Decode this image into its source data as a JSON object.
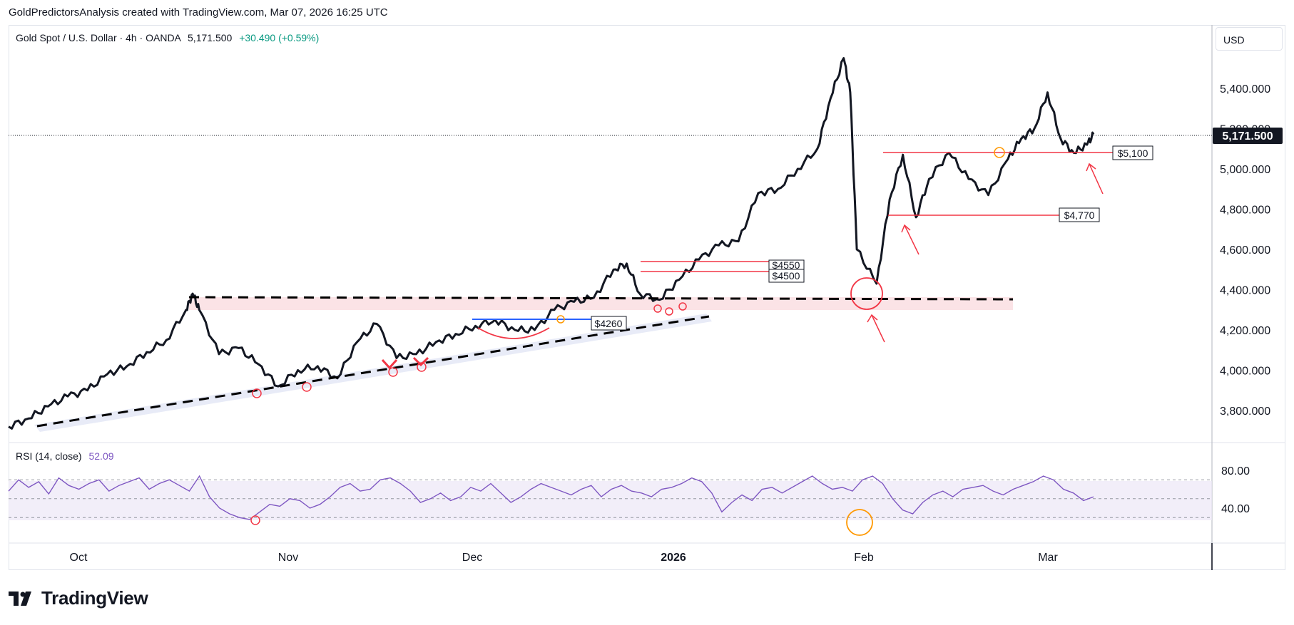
{
  "header": {
    "attribution": "GoldPredictorsAnalysis created with TradingView.com, Mar 07, 2026 16:25 UTC"
  },
  "legend": {
    "symbol": "Gold Spot / U.S. Dollar",
    "interval": "4h",
    "exchange": "OANDA",
    "last": "5,171.500",
    "change": "+30.490 (+0.59%)",
    "change_color": "#089981"
  },
  "currency": "USD",
  "price_axis": {
    "ticks": [
      "5,400.000",
      "5,200.000",
      "5,000.000",
      "4,800.000",
      "4,600.000",
      "4,400.000",
      "4,200.000",
      "4,000.000",
      "3,800.000"
    ],
    "current_price_label": "5,171.500"
  },
  "time_axis": {
    "labels": [
      "Oct",
      "Nov",
      "Dec",
      "2026",
      "Feb",
      "Mar"
    ]
  },
  "rsi": {
    "label": "RSI (14, close)",
    "value": "52.09",
    "ticks": [
      "80.00",
      "40.00"
    ],
    "line_color": "#7e57c2",
    "band_upper": 70,
    "band_mid": 50,
    "band_lower": 30,
    "values": [
      58,
      70,
      62,
      68,
      55,
      72,
      64,
      60,
      66,
      70,
      58,
      64,
      68,
      72,
      60,
      66,
      70,
      64,
      58,
      74,
      52,
      40,
      34,
      30,
      28,
      36,
      44,
      42,
      50,
      48,
      40,
      44,
      52,
      62,
      66,
      58,
      60,
      70,
      72,
      66,
      58,
      46,
      50,
      56,
      48,
      52,
      62,
      58,
      66,
      56,
      46,
      52,
      60,
      66,
      62,
      58,
      54,
      60,
      64,
      52,
      60,
      64,
      58,
      56,
      52,
      60,
      62,
      66,
      72,
      68,
      56,
      36,
      46,
      54,
      48,
      60,
      62,
      56,
      62,
      68,
      74,
      66,
      60,
      62,
      58,
      70,
      74,
      66,
      50,
      38,
      34,
      46,
      54,
      58,
      52,
      60,
      62,
      64,
      58,
      54,
      60,
      64,
      68,
      74,
      70,
      60,
      56,
      48,
      52
    ]
  },
  "footer": {
    "brand": "TradingView"
  },
  "colors": {
    "price_line": "#131722",
    "support_line": "#000000",
    "annotation_red": "#f23645",
    "annotation_blue": "#2962ff",
    "annotation_orange": "#ff9800",
    "zone_pink": "#fbe3e6",
    "zone_lavender": "#e8ebf7"
  },
  "chart_data": {
    "type": "line",
    "title": "Gold Spot / U.S. Dollar · 4h · OANDA",
    "xlabel": "",
    "ylabel": "",
    "x_range": [
      "2025-09-23",
      "2026-03-07"
    ],
    "ylim": [
      3700,
      5600
    ],
    "series": [
      {
        "x": [
          "2025-09-23",
          "2025-09-26",
          "2025-09-29",
          "2025-10-02",
          "2025-10-05",
          "2025-10-08",
          "2025-10-11",
          "2025-10-14",
          "2025-10-17",
          "2025-10-20",
          "2025-10-21",
          "2025-10-22",
          "2025-10-25",
          "2025-10-28",
          "2025-10-31",
          "2025-11-03",
          "2025-11-06",
          "2025-11-09",
          "2025-11-12",
          "2025-11-15",
          "2025-11-18",
          "2025-11-21",
          "2025-11-24",
          "2025-11-27",
          "2025-11-30",
          "2025-12-03",
          "2025-12-06",
          "2025-12-09",
          "2025-12-12",
          "2025-12-15",
          "2025-12-18",
          "2025-12-21",
          "2025-12-24",
          "2025-12-26",
          "2025-12-28",
          "2025-12-31",
          "2026-01-03",
          "2026-01-06",
          "2026-01-09",
          "2026-01-12",
          "2026-01-15",
          "2026-01-18",
          "2026-01-21",
          "2026-01-24",
          "2026-01-26",
          "2026-01-28",
          "2026-01-29",
          "2026-01-30",
          "2026-02-02",
          "2026-02-04",
          "2026-02-06",
          "2026-02-08",
          "2026-02-10",
          "2026-02-13",
          "2026-02-16",
          "2026-02-19",
          "2026-02-22",
          "2026-02-24",
          "2026-02-26",
          "2026-02-28",
          "2026-03-02",
          "2026-03-04",
          "2026-03-06",
          "2026-03-07"
        ],
        "y": [
          3720,
          3760,
          3820,
          3870,
          3900,
          3980,
          4020,
          4090,
          4150,
          4300,
          4380,
          4300,
          4080,
          4110,
          4030,
          3920,
          4000,
          4020,
          3960,
          4140,
          4230,
          4060,
          4080,
          4140,
          4180,
          4220,
          4250,
          4200,
          4200,
          4300,
          4340,
          4360,
          4500,
          4530,
          4380,
          4350,
          4450,
          4550,
          4620,
          4640,
          4880,
          4900,
          5000,
          5100,
          5350,
          5550,
          5380,
          4600,
          4430,
          4850,
          5070,
          4760,
          4950,
          5080,
          4950,
          4870,
          5050,
          5150,
          5200,
          5380,
          5150,
          5080,
          5120,
          5171.5
        ]
      }
    ],
    "annotations": [
      {
        "text": "$5,100",
        "price": 5100
      },
      {
        "text": "$4,770",
        "price": 4770
      },
      {
        "text": "$4550",
        "price": 4550
      },
      {
        "text": "$4500",
        "price": 4500
      },
      {
        "text": "$4260",
        "price": 4260
      }
    ],
    "grid": false
  }
}
